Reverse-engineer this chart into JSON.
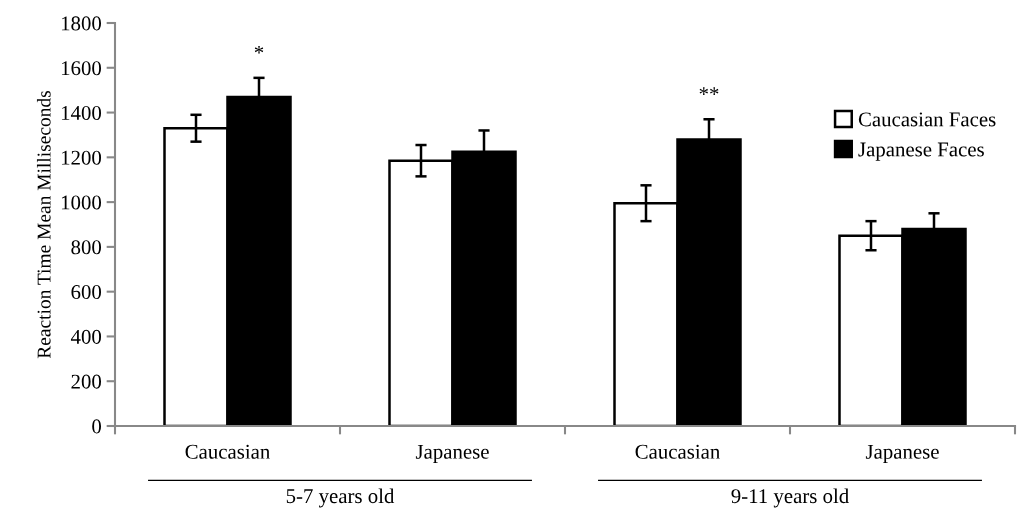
{
  "chart_data": {
    "type": "bar",
    "ylabel": "Reaction Time Mean Milliseconds",
    "categories": [
      "Caucasian",
      "Japanese",
      "Caucasian",
      "Japanese"
    ],
    "series": [
      {
        "name": "Caucasian Faces",
        "color": "#ffffff",
        "values": [
          1330,
          1185,
          995,
          850
        ],
        "errors": [
          60,
          70,
          80,
          65
        ]
      },
      {
        "name": "Japanese Faces",
        "color": "#000000",
        "values": [
          1470,
          1225,
          1280,
          880
        ],
        "errors": [
          85,
          95,
          90,
          70
        ],
        "value_labels": [
          "*",
          null,
          "**",
          null
        ]
      }
    ],
    "ylim": [
      0,
      1800
    ],
    "yticks": [
      0,
      200,
      400,
      600,
      800,
      1000,
      1200,
      1400,
      1600,
      1800
    ],
    "annotations": [
      "5-7 years old",
      "9-11 years old"
    ],
    "grid": false,
    "legend": "right"
  }
}
